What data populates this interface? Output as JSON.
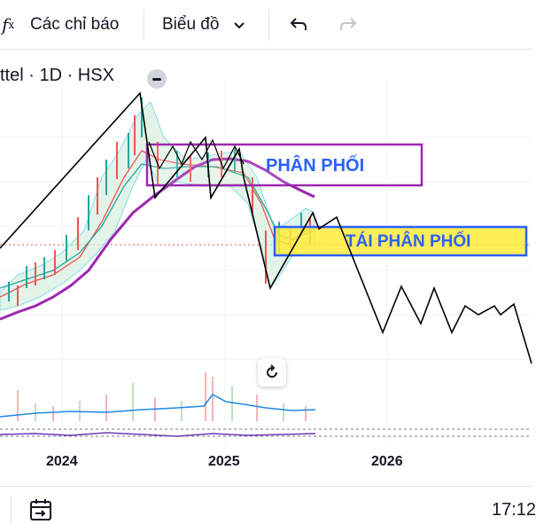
{
  "toolbar": {
    "indicators_label": "Các chỉ báo",
    "charts_label": "Biểu đồ",
    "fx_icon": "fx-icon",
    "chevron_icon": "chevron-down-icon",
    "undo_icon": "undo-icon",
    "redo_icon": "redo-icon"
  },
  "chart": {
    "symbol": "ttel · 1D · HSX",
    "zones": {
      "distribution": "PHÂN PHỐI",
      "redistribution": "TÁI PHÂN PHỐI"
    },
    "time_axis": [
      "2024",
      "2025",
      "2026"
    ],
    "colors": {
      "zone_border": "#9c27b0",
      "zone_fill": "#ffeb3b",
      "zone_text": "#2962ff",
      "ma_line": "#9c27b0"
    }
  },
  "bottombar": {
    "clock": "17:12",
    "date_range_icon": "date-range-icon"
  }
}
